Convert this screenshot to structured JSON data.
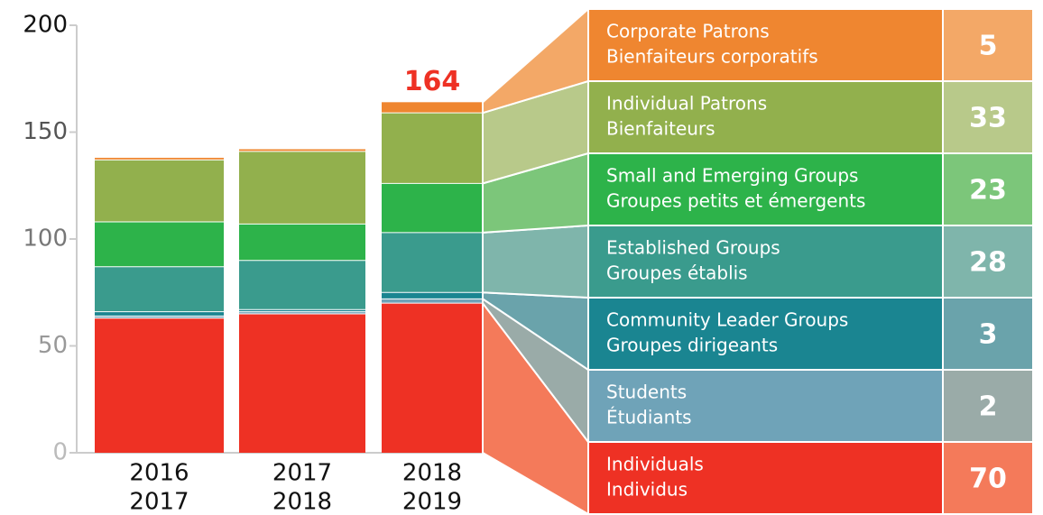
{
  "chart_data": {
    "type": "stacked_bar",
    "categories": [
      [
        "2016",
        "2017"
      ],
      [
        "2017",
        "2018"
      ],
      [
        "2018",
        "2019"
      ]
    ],
    "ylim": [
      0,
      200
    ],
    "yticks": [
      0,
      50,
      100,
      150,
      200
    ],
    "total": 164,
    "series": [
      {
        "name": [
          "Individuals",
          "Individus"
        ],
        "color": "#ee3124",
        "light_color": "#f47a5a",
        "values": [
          63,
          65,
          70
        ]
      },
      {
        "name": [
          "Students",
          "Étudiants"
        ],
        "color": "#6fa3b8",
        "light_color": "#9aaba8",
        "values": [
          1,
          1,
          2
        ]
      },
      {
        "name": [
          "Community Leader Groups",
          "Groupes dirigeants"
        ],
        "color": "#1a8591",
        "light_color": "#6aa3ab",
        "values": [
          2,
          1,
          3
        ]
      },
      {
        "name": [
          "Established Groups",
          "Groupes établis"
        ],
        "color": "#3a9b8d",
        "light_color": "#7fb5ab",
        "values": [
          21,
          23,
          28
        ]
      },
      {
        "name": [
          "Small and Emerging Groups",
          "Groupes petits et émergents"
        ],
        "color": "#2db34a",
        "light_color": "#7cc67a",
        "values": [
          21,
          17,
          23
        ]
      },
      {
        "name": [
          "Individual Patrons",
          "Bienfaiteurs"
        ],
        "color": "#92b04d",
        "light_color": "#b8c98a",
        "values": [
          29,
          34,
          33
        ]
      },
      {
        "name": [
          "Corporate Patrons",
          "Bienfaiteurs corporatifs"
        ],
        "color": "#ef8630",
        "light_color": "#f3a867",
        "values": [
          1,
          1,
          5
        ]
      }
    ]
  }
}
